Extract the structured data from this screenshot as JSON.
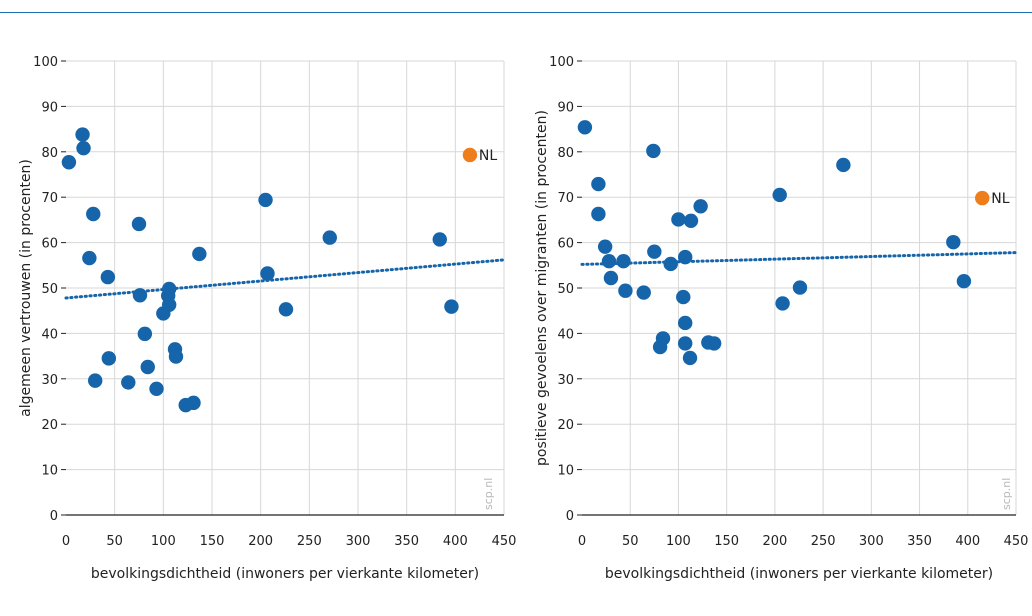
{
  "colors": {
    "point": "#1665aa",
    "highlight": "#ee7d1b",
    "trend": "#1665aa",
    "grid": "#d7d7d7",
    "axis": "#222222"
  },
  "chart_data": [
    {
      "type": "scatter",
      "xlabel": "bevolkingsdichtheid (inwoners per vierkante kilometer)",
      "ylabel": "algemeen vertrouwen (in procenten)",
      "xlim": [
        0,
        450
      ],
      "ylim": [
        0,
        100
      ],
      "x_ticks": [
        0,
        50,
        100,
        150,
        200,
        250,
        300,
        350,
        400,
        450
      ],
      "y_ticks": [
        0,
        10,
        20,
        30,
        40,
        50,
        60,
        70,
        80,
        90,
        100
      ],
      "grid": true,
      "watermark": "scp.nl",
      "points": [
        {
          "x": 3,
          "y": 77.7
        },
        {
          "x": 17,
          "y": 83.8
        },
        {
          "x": 18,
          "y": 80.8
        },
        {
          "x": 24,
          "y": 56.6
        },
        {
          "x": 28,
          "y": 66.3
        },
        {
          "x": 30,
          "y": 29.6
        },
        {
          "x": 43,
          "y": 52.4
        },
        {
          "x": 44,
          "y": 34.5
        },
        {
          "x": 64,
          "y": 29.2
        },
        {
          "x": 75,
          "y": 64.1
        },
        {
          "x": 76,
          "y": 48.4
        },
        {
          "x": 81,
          "y": 39.9
        },
        {
          "x": 84,
          "y": 32.6
        },
        {
          "x": 93,
          "y": 27.8
        },
        {
          "x": 100,
          "y": 44.4
        },
        {
          "x": 105,
          "y": 48.3
        },
        {
          "x": 106,
          "y": 49.8
        },
        {
          "x": 106,
          "y": 46.3
        },
        {
          "x": 112,
          "y": 36.5
        },
        {
          "x": 113,
          "y": 34.9
        },
        {
          "x": 123,
          "y": 24.2
        },
        {
          "x": 131,
          "y": 24.7
        },
        {
          "x": 137,
          "y": 57.5
        },
        {
          "x": 205,
          "y": 69.4
        },
        {
          "x": 207,
          "y": 53.2
        },
        {
          "x": 226,
          "y": 45.3
        },
        {
          "x": 271,
          "y": 61.1
        },
        {
          "x": 384,
          "y": 60.7
        },
        {
          "x": 396,
          "y": 45.9
        }
      ],
      "highlight": {
        "x": 415,
        "y": 79.3,
        "label": "NL"
      },
      "trendline": {
        "x": [
          0,
          450
        ],
        "y": [
          47.8,
          56.2
        ]
      }
    },
    {
      "type": "scatter",
      "xlabel": "bevolkingsdichtheid (inwoners per vierkante kilometer)",
      "ylabel": "positieve gevoelens over migranten (in procenten)",
      "xlim": [
        0,
        450
      ],
      "ylim": [
        0,
        100
      ],
      "x_ticks": [
        0,
        50,
        100,
        150,
        200,
        250,
        300,
        350,
        400,
        450
      ],
      "y_ticks": [
        0,
        10,
        20,
        30,
        40,
        50,
        60,
        70,
        80,
        90,
        100
      ],
      "grid": true,
      "watermark": "scp.nl",
      "points": [
        {
          "x": 3,
          "y": 85.4
        },
        {
          "x": 17,
          "y": 72.9
        },
        {
          "x": 17,
          "y": 66.3
        },
        {
          "x": 24,
          "y": 59.1
        },
        {
          "x": 28,
          "y": 55.9
        },
        {
          "x": 30,
          "y": 52.2
        },
        {
          "x": 43,
          "y": 55.9
        },
        {
          "x": 45,
          "y": 49.4
        },
        {
          "x": 64,
          "y": 49.0
        },
        {
          "x": 74,
          "y": 80.2
        },
        {
          "x": 75,
          "y": 58.0
        },
        {
          "x": 81,
          "y": 37.0
        },
        {
          "x": 84,
          "y": 38.9
        },
        {
          "x": 92,
          "y": 55.3
        },
        {
          "x": 100,
          "y": 65.1
        },
        {
          "x": 105,
          "y": 48.0
        },
        {
          "x": 107,
          "y": 56.8
        },
        {
          "x": 107,
          "y": 42.3
        },
        {
          "x": 107,
          "y": 37.8
        },
        {
          "x": 112,
          "y": 34.6
        },
        {
          "x": 113,
          "y": 64.8
        },
        {
          "x": 123,
          "y": 68.0
        },
        {
          "x": 131,
          "y": 38.0
        },
        {
          "x": 137,
          "y": 37.8
        },
        {
          "x": 205,
          "y": 70.5
        },
        {
          "x": 208,
          "y": 46.6
        },
        {
          "x": 226,
          "y": 50.1
        },
        {
          "x": 271,
          "y": 77.1
        },
        {
          "x": 385,
          "y": 60.1
        },
        {
          "x": 396,
          "y": 51.5
        }
      ],
      "highlight": {
        "x": 415,
        "y": 69.8,
        "label": "NL"
      },
      "trendline": {
        "x": [
          0,
          450
        ],
        "y": [
          55.2,
          57.8
        ]
      }
    }
  ]
}
